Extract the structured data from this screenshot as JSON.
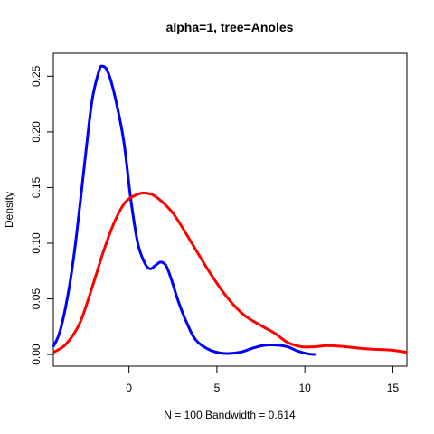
{
  "chart_data": {
    "type": "line",
    "title": "alpha=1, tree=Anoles",
    "xlabel": "N = 100   Bandwidth = 0.614",
    "ylabel": "Density",
    "xlim": [
      -4.3,
      15.8
    ],
    "ylim": [
      -0.0105,
      0.2706
    ],
    "x_ticks": [
      "0",
      "5",
      "10",
      "15"
    ],
    "y_ticks": [
      "0.00",
      "0.05",
      "0.10",
      "0.15",
      "0.20",
      "0.25"
    ],
    "series": [
      {
        "color": "#0000ff",
        "points": [
          [
            -4.3,
            0.007
          ],
          [
            -3.9,
            0.022
          ],
          [
            -3.4,
            0.06
          ],
          [
            -3.0,
            0.105
          ],
          [
            -2.5,
            0.175
          ],
          [
            -2.1,
            0.228
          ],
          [
            -1.7,
            0.255
          ],
          [
            -1.5,
            0.259
          ],
          [
            -1.2,
            0.254
          ],
          [
            -0.8,
            0.232
          ],
          [
            -0.3,
            0.192
          ],
          [
            0.1,
            0.14
          ],
          [
            0.5,
            0.1
          ],
          [
            0.9,
            0.082
          ],
          [
            1.2,
            0.077
          ],
          [
            1.5,
            0.08
          ],
          [
            1.8,
            0.083
          ],
          [
            2.1,
            0.08
          ],
          [
            2.4,
            0.068
          ],
          [
            2.8,
            0.048
          ],
          [
            3.3,
            0.028
          ],
          [
            3.8,
            0.013
          ],
          [
            4.6,
            0.004
          ],
          [
            5.4,
            0.001
          ],
          [
            6.3,
            0.002
          ],
          [
            7.1,
            0.006
          ],
          [
            7.6,
            0.008
          ],
          [
            8.3,
            0.0085
          ],
          [
            9.0,
            0.007
          ],
          [
            9.6,
            0.003
          ],
          [
            10.2,
            0.0005
          ],
          [
            10.6,
            0.0
          ]
        ]
      },
      {
        "color": "#ff0000",
        "points": [
          [
            -4.3,
            0.002
          ],
          [
            -3.6,
            0.009
          ],
          [
            -2.8,
            0.028
          ],
          [
            -2.0,
            0.065
          ],
          [
            -1.4,
            0.095
          ],
          [
            -0.8,
            0.12
          ],
          [
            -0.2,
            0.137
          ],
          [
            0.5,
            0.144
          ],
          [
            1.0,
            0.145
          ],
          [
            1.6,
            0.141
          ],
          [
            2.5,
            0.127
          ],
          [
            3.5,
            0.102
          ],
          [
            4.5,
            0.076
          ],
          [
            5.5,
            0.053
          ],
          [
            6.5,
            0.036
          ],
          [
            7.5,
            0.026
          ],
          [
            8.3,
            0.019
          ],
          [
            9.0,
            0.011
          ],
          [
            9.8,
            0.007
          ],
          [
            10.6,
            0.007
          ],
          [
            11.3,
            0.008
          ],
          [
            12.3,
            0.007
          ],
          [
            13.5,
            0.005
          ],
          [
            14.8,
            0.004
          ],
          [
            15.8,
            0.002
          ]
        ]
      }
    ]
  }
}
